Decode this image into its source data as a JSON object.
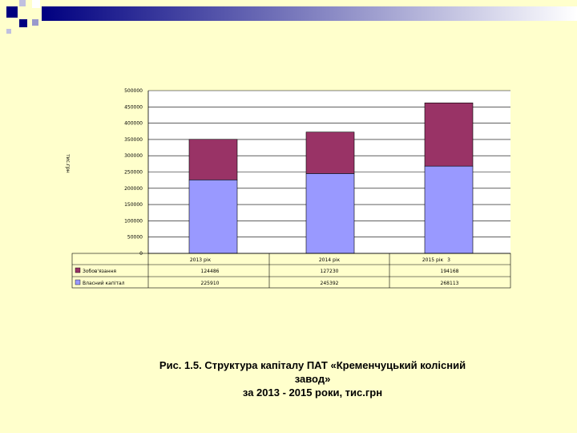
{
  "caption": {
    "line1": "Рис. 1.5. Структура капіталу ПАТ «Кременчуцький колісний",
    "line2": "завод»",
    "line3": "за 2013 - 2015 роки, тис.грн"
  },
  "colors": {
    "background": "#FFFFCC",
    "decoration": "#000080",
    "zobov": "#993366",
    "vlasnyi": "#9999FF"
  },
  "chart_data": {
    "type": "bar",
    "stacked": true,
    "categories": [
      "2013 рік",
      "2014 рік",
      "2015 рік"
    ],
    "series": [
      {
        "name": "Власний капітал",
        "values": [
          225910,
          245392,
          268113
        ]
      },
      {
        "name": "Зобов'язання",
        "values": [
          124486,
          127230,
          194168
        ]
      }
    ],
    "table_values": {
      "zobov": [
        "124486",
        "127230",
        "194168"
      ],
      "vlasnyi": [
        "225910",
        "245392",
        "268113"
      ]
    },
    "yticks": [
      "0",
      "50000",
      "100000",
      "150000",
      "200000",
      "250000",
      "300000",
      "350000",
      "400000",
      "450000",
      "500000"
    ],
    "ylabel": "тис.грн",
    "ylim": [
      0,
      500000
    ],
    "stray_mark": "3",
    "grid": true,
    "legend": "data-table"
  }
}
